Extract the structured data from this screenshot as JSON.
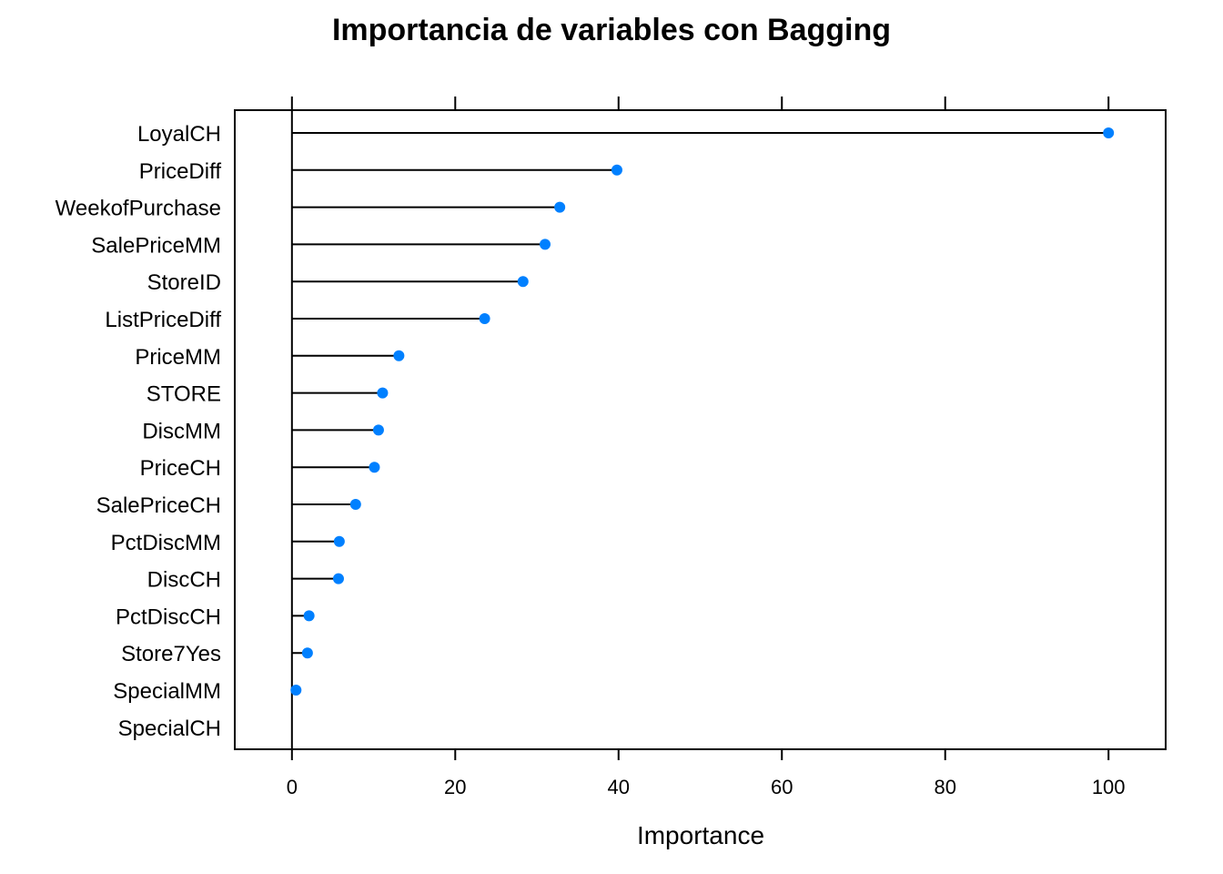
{
  "chart_data": {
    "type": "dot",
    "title": "Importancia de variables con Bagging",
    "xlabel": "Importance",
    "ylabel": "",
    "xlim": [
      -7,
      107
    ],
    "xticks": [
      0,
      20,
      40,
      60,
      80,
      100
    ],
    "xtick_labels": [
      "0",
      "20",
      "40",
      "60",
      "80",
      "100"
    ],
    "categories": [
      "LoyalCH",
      "PriceDiff",
      "WeekofPurchase",
      "SalePriceMM",
      "StoreID",
      "ListPriceDiff",
      "PriceMM",
      "STORE",
      "DiscMM",
      "PriceCH",
      "SalePriceCH",
      "PctDiscMM",
      "DiscCH",
      "PctDiscCH",
      "Store7Yes",
      "SpecialMM",
      "SpecialCH"
    ],
    "values": [
      100,
      39.8,
      32.8,
      31,
      28.3,
      23.6,
      13.1,
      11.1,
      10.6,
      10.1,
      7.8,
      5.8,
      5.7,
      2.1,
      1.9,
      0.5,
      0
    ],
    "marker_color": "#0080ff",
    "line_color": "#000000",
    "grid": false,
    "legend": "none"
  }
}
